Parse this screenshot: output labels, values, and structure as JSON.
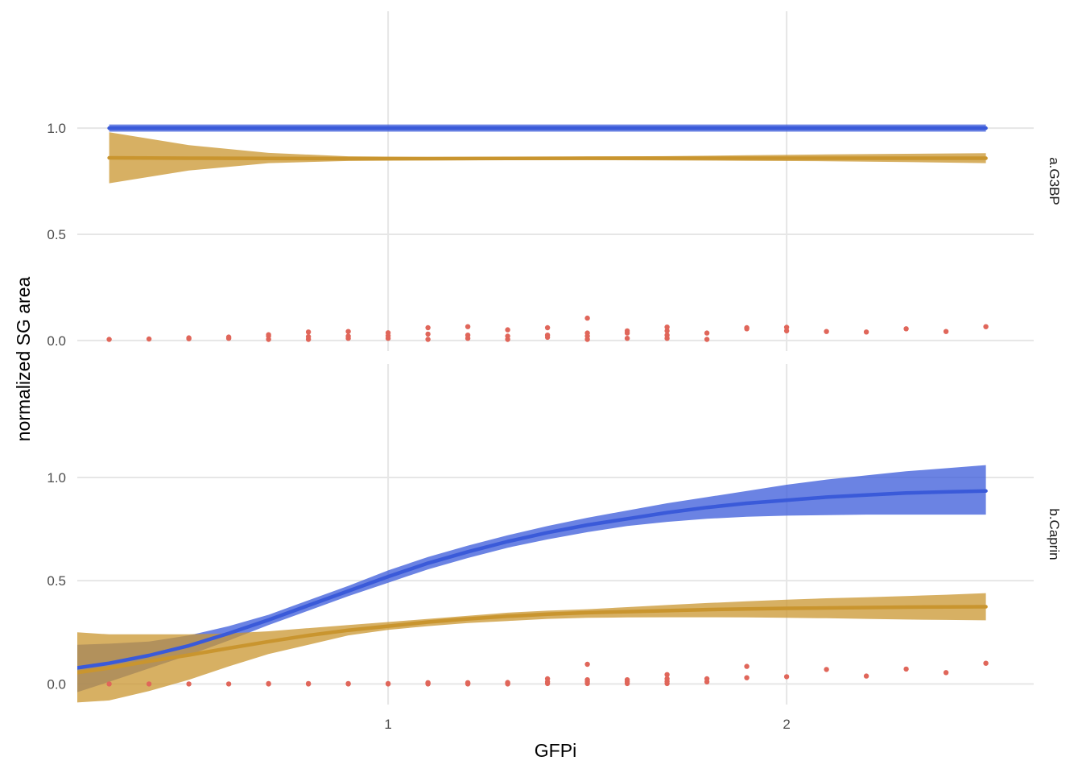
{
  "chart_data": {
    "type": "line",
    "xlabel": "GFPi",
    "ylabel": "normalized SG area",
    "xlim": [
      0.22,
      2.62
    ],
    "x_ticks": [
      1,
      2
    ],
    "x_tick_labels": [
      "1",
      "2"
    ],
    "y_ticks": [
      0.0,
      0.5,
      1.0
    ],
    "y_tick_labels": [
      "0.0",
      "0.5",
      "1.0"
    ],
    "grid": true,
    "legend": "none",
    "colors": {
      "blue": "#3a5ad9",
      "gold": "#c9952f",
      "points": "#e0665a",
      "grid": "#e6e6e6"
    },
    "panels": [
      {
        "strip": "a.G3BP",
        "ylim": [
          -0.05,
          1.55
        ],
        "series": [
          {
            "color": "blue",
            "x": [
              0.3,
              0.5,
              0.7,
              0.9,
              1.1,
              1.3,
              1.5,
              1.7,
              1.9,
              2.1,
              2.3,
              2.5
            ],
            "fit": [
              1.0,
              1.0,
              1.0,
              1.0,
              1.0,
              1.0,
              1.0,
              1.0,
              1.0,
              1.0,
              1.0,
              1.0
            ],
            "lower": [
              0.983,
              0.983,
              0.983,
              0.983,
              0.983,
              0.983,
              0.983,
              0.983,
              0.983,
              0.983,
              0.983,
              0.983
            ],
            "upper": [
              1.017,
              1.017,
              1.017,
              1.017,
              1.017,
              1.017,
              1.017,
              1.017,
              1.017,
              1.017,
              1.017,
              1.017
            ]
          },
          {
            "color": "gold",
            "x": [
              0.3,
              0.5,
              0.7,
              0.9,
              1.1,
              1.3,
              1.5,
              1.7,
              1.9,
              2.1,
              2.3,
              2.5
            ],
            "fit": [
              0.86,
              0.858,
              0.857,
              0.856,
              0.856,
              0.857,
              0.858,
              0.858,
              0.858,
              0.858,
              0.858,
              0.858
            ],
            "lower": [
              0.74,
              0.8,
              0.835,
              0.845,
              0.848,
              0.849,
              0.849,
              0.848,
              0.846,
              0.844,
              0.84,
              0.835
            ],
            "upper": [
              0.98,
              0.92,
              0.883,
              0.867,
              0.864,
              0.864,
              0.866,
              0.868,
              0.872,
              0.876,
              0.879,
              0.882
            ]
          }
        ],
        "points": [
          [
            0.3,
            0.005
          ],
          [
            0.4,
            0.007
          ],
          [
            0.5,
            0.008
          ],
          [
            0.5,
            0.012
          ],
          [
            0.6,
            0.01
          ],
          [
            0.6,
            0.016
          ],
          [
            0.7,
            0.005
          ],
          [
            0.7,
            0.02
          ],
          [
            0.7,
            0.027
          ],
          [
            0.8,
            0.005
          ],
          [
            0.8,
            0.018
          ],
          [
            0.8,
            0.04
          ],
          [
            0.9,
            0.01
          ],
          [
            0.9,
            0.02
          ],
          [
            0.9,
            0.042
          ],
          [
            1.0,
            0.01
          ],
          [
            1.0,
            0.022
          ],
          [
            1.0,
            0.036
          ],
          [
            1.1,
            0.005
          ],
          [
            1.1,
            0.03
          ],
          [
            1.1,
            0.06
          ],
          [
            1.2,
            0.01
          ],
          [
            1.2,
            0.025
          ],
          [
            1.2,
            0.065
          ],
          [
            1.3,
            0.005
          ],
          [
            1.3,
            0.02
          ],
          [
            1.3,
            0.05
          ],
          [
            1.4,
            0.015
          ],
          [
            1.4,
            0.025
          ],
          [
            1.4,
            0.06
          ],
          [
            1.5,
            0.005
          ],
          [
            1.5,
            0.02
          ],
          [
            1.5,
            0.035
          ],
          [
            1.5,
            0.105
          ],
          [
            1.6,
            0.01
          ],
          [
            1.6,
            0.035
          ],
          [
            1.6,
            0.045
          ],
          [
            1.7,
            0.01
          ],
          [
            1.7,
            0.025
          ],
          [
            1.7,
            0.045
          ],
          [
            1.7,
            0.063
          ],
          [
            1.8,
            0.005
          ],
          [
            1.8,
            0.035
          ],
          [
            1.9,
            0.055
          ],
          [
            1.9,
            0.06
          ],
          [
            2.0,
            0.045
          ],
          [
            2.0,
            0.062
          ],
          [
            2.1,
            0.042
          ],
          [
            2.2,
            0.04
          ],
          [
            2.3,
            0.055
          ],
          [
            2.4,
            0.042
          ],
          [
            2.5,
            0.065
          ]
        ]
      },
      {
        "strip": "b.Caprin",
        "ylim": [
          -0.1,
          1.55
        ],
        "series": [
          {
            "color": "blue",
            "x": [
              0.22,
              0.3,
              0.4,
              0.5,
              0.6,
              0.7,
              0.8,
              0.9,
              1.0,
              1.1,
              1.2,
              1.3,
              1.4,
              1.5,
              1.6,
              1.7,
              1.8,
              1.9,
              2.0,
              2.1,
              2.2,
              2.3,
              2.4,
              2.5
            ],
            "fit": [
              0.078,
              0.1,
              0.138,
              0.185,
              0.245,
              0.31,
              0.38,
              0.45,
              0.52,
              0.585,
              0.64,
              0.69,
              0.733,
              0.77,
              0.8,
              0.83,
              0.855,
              0.875,
              0.89,
              0.905,
              0.915,
              0.925,
              0.93,
              0.935
            ],
            "lower": [
              -0.04,
              0.01,
              0.075,
              0.14,
              0.21,
              0.285,
              0.355,
              0.425,
              0.49,
              0.555,
              0.61,
              0.66,
              0.7,
              0.735,
              0.765,
              0.785,
              0.8,
              0.81,
              0.815,
              0.818,
              0.82,
              0.82,
              0.82,
              0.82
            ],
            "upper": [
              0.19,
              0.195,
              0.205,
              0.235,
              0.28,
              0.335,
              0.405,
              0.475,
              0.55,
              0.615,
              0.67,
              0.72,
              0.765,
              0.805,
              0.84,
              0.875,
              0.905,
              0.935,
              0.965,
              0.99,
              1.01,
              1.03,
              1.045,
              1.06
            ]
          },
          {
            "color": "gold",
            "x": [
              0.22,
              0.3,
              0.4,
              0.5,
              0.6,
              0.7,
              0.8,
              0.9,
              1.0,
              1.1,
              1.2,
              1.3,
              1.4,
              1.5,
              1.6,
              1.7,
              1.8,
              1.9,
              2.0,
              2.1,
              2.2,
              2.3,
              2.4,
              2.5
            ],
            "fit": [
              0.055,
              0.077,
              0.11,
              0.14,
              0.173,
              0.205,
              0.235,
              0.26,
              0.28,
              0.3,
              0.315,
              0.328,
              0.338,
              0.345,
              0.35,
              0.355,
              0.36,
              0.363,
              0.366,
              0.368,
              0.37,
              0.372,
              0.373,
              0.374
            ],
            "lower": [
              -0.09,
              -0.08,
              -0.035,
              0.02,
              0.085,
              0.145,
              0.19,
              0.235,
              0.262,
              0.28,
              0.295,
              0.305,
              0.315,
              0.32,
              0.322,
              0.323,
              0.323,
              0.322,
              0.32,
              0.318,
              0.315,
              0.312,
              0.31,
              0.308
            ],
            "upper": [
              0.25,
              0.24,
              0.24,
              0.24,
              0.245,
              0.255,
              0.27,
              0.285,
              0.3,
              0.315,
              0.33,
              0.345,
              0.355,
              0.362,
              0.372,
              0.382,
              0.392,
              0.4,
              0.408,
              0.415,
              0.42,
              0.426,
              0.432,
              0.44
            ]
          }
        ],
        "points": [
          [
            0.3,
            0.0
          ],
          [
            0.4,
            0.0
          ],
          [
            0.5,
            0.0
          ],
          [
            0.6,
            0.0
          ],
          [
            0.7,
            0.0
          ],
          [
            0.7,
            0.002
          ],
          [
            0.8,
            0.0
          ],
          [
            0.8,
            0.002
          ],
          [
            0.9,
            0.0
          ],
          [
            0.9,
            0.002
          ],
          [
            1.0,
            0.0
          ],
          [
            1.0,
            0.002
          ],
          [
            1.1,
            0.0
          ],
          [
            1.1,
            0.003
          ],
          [
            1.1,
            0.006
          ],
          [
            1.2,
            0.0
          ],
          [
            1.2,
            0.003
          ],
          [
            1.2,
            0.006
          ],
          [
            1.3,
            0.0
          ],
          [
            1.3,
            0.003
          ],
          [
            1.3,
            0.007
          ],
          [
            1.4,
            0.002
          ],
          [
            1.4,
            0.01
          ],
          [
            1.4,
            0.025
          ],
          [
            1.5,
            0.002
          ],
          [
            1.5,
            0.01
          ],
          [
            1.5,
            0.02
          ],
          [
            1.5,
            0.095
          ],
          [
            1.6,
            0.002
          ],
          [
            1.6,
            0.01
          ],
          [
            1.6,
            0.02
          ],
          [
            1.7,
            0.002
          ],
          [
            1.7,
            0.012
          ],
          [
            1.7,
            0.025
          ],
          [
            1.7,
            0.045
          ],
          [
            1.8,
            0.01
          ],
          [
            1.8,
            0.025
          ],
          [
            1.9,
            0.03
          ],
          [
            1.9,
            0.085
          ],
          [
            2.0,
            0.035
          ],
          [
            2.1,
            0.07
          ],
          [
            2.2,
            0.038
          ],
          [
            2.3,
            0.072
          ],
          [
            2.4,
            0.055
          ],
          [
            2.5,
            0.1
          ]
        ]
      }
    ]
  }
}
